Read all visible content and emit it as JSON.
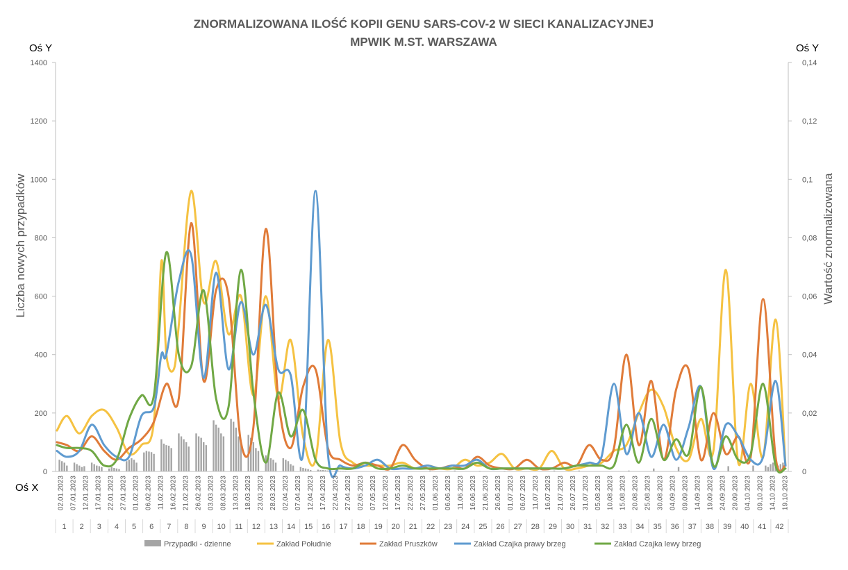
{
  "chart_data": {
    "type": "line",
    "title_line1": "ZNORMALIZOWANA ILOŚĆ KOPII GENU SARS-COV-2 W SIECI KANALIZACYJNEJ",
    "title_line2": "MPWIK M.ST. WARSZAWA",
    "os_y_left": "Oś Y",
    "os_y_right": "Oś Y",
    "os_x": "Oś X",
    "ylabel_left": "Liczba nowych przypadków",
    "ylabel_right": "Wartość znormalizowana",
    "ylim_left": [
      0,
      1400
    ],
    "ylim_right": [
      0,
      0.14
    ],
    "yticks_left": [
      "0",
      "200",
      "400",
      "600",
      "800",
      "1000",
      "1200",
      "1400"
    ],
    "yticks_right": [
      "0",
      "0,02",
      "0,04",
      "0,06",
      "0,08",
      "0,1",
      "0,12",
      "0,14"
    ],
    "grid": false,
    "legend_position": "bottom",
    "x_range": [
      0,
      293
    ],
    "date_labels": [
      "02.01.2023",
      "07.01.2023",
      "12.01.2023",
      "17.01.2023",
      "22.01.2023",
      "27.01.2023",
      "01.02.2023",
      "06.02.2023",
      "11.02.2023",
      "16.02.2023",
      "21.02.2023",
      "26.02.2023",
      "03.03.2023",
      "08.03.2023",
      "13.03.2023",
      "18.03.2023",
      "23.03.2023",
      "28.03.2023",
      "02.04.2023",
      "07.04.2023",
      "12.04.2023",
      "17.04.2023",
      "22.04.2023",
      "27.04.2023",
      "02.05.2023",
      "07.05.2023",
      "12.05.2023",
      "17.05.2023",
      "22.05.2023",
      "27.05.2023",
      "01.06.2023",
      "06.06.2023",
      "11.06.2023",
      "16.06.2023",
      "21.06.2023",
      "26.06.2023",
      "01.07.2023",
      "06.07.2023",
      "11.07.2023",
      "16.07.2023",
      "21.07.2023",
      "26.07.2023",
      "31.07.2023",
      "05.08.2023",
      "10.08.2023",
      "15.08.2023",
      "20.08.2023",
      "25.08.2023",
      "30.08.2023",
      "04.09.2023",
      "09.09.2023",
      "14.09.2023",
      "19.09.2023",
      "24.09.2023",
      "29.09.2023",
      "04.10.2023",
      "09.10.2023",
      "14.10.2023",
      "19.10.2023"
    ],
    "week_labels": [
      "1",
      "2",
      "3",
      "4",
      "5",
      "6",
      "7",
      "8",
      "9",
      "10",
      "11",
      "12",
      "13",
      "14",
      "15",
      "16",
      "17",
      "18",
      "19",
      "20",
      "21",
      "22",
      "23",
      "24",
      "25",
      "26",
      "27",
      "28",
      "29",
      "30",
      "31",
      "32",
      "33",
      "34",
      "35",
      "36",
      "37",
      "38",
      "39",
      "40",
      "41",
      "42"
    ],
    "series": [
      {
        "name": "Przypadki - dzienne",
        "type": "bar",
        "axis": "left",
        "color": "#a5a5a5",
        "x": [
          1,
          2,
          3,
          4,
          7,
          8,
          9,
          10,
          11,
          14,
          15,
          16,
          17,
          18,
          21,
          22,
          23,
          24,
          25,
          28,
          29,
          30,
          31,
          32,
          35,
          36,
          37,
          38,
          39,
          42,
          43,
          44,
          45,
          46,
          49,
          50,
          51,
          52,
          53,
          56,
          57,
          58,
          59,
          60,
          63,
          64,
          65,
          66,
          67,
          70,
          71,
          72,
          73,
          74,
          77,
          78,
          79,
          80,
          81,
          84,
          85,
          86,
          87,
          88,
          91,
          92,
          93,
          94,
          95,
          98,
          99,
          100,
          101,
          102,
          105,
          106,
          107,
          108,
          109,
          112,
          113,
          114,
          115,
          116,
          150,
          160,
          170,
          180,
          200,
          210,
          230,
          240,
          250,
          270,
          280,
          285,
          286,
          287,
          288,
          289,
          290,
          291,
          292
        ],
        "values": [
          40,
          35,
          30,
          20,
          30,
          25,
          20,
          15,
          18,
          30,
          25,
          20,
          18,
          15,
          10,
          15,
          12,
          10,
          8,
          35,
          40,
          45,
          40,
          30,
          65,
          70,
          68,
          66,
          60,
          110,
          95,
          90,
          88,
          80,
          130,
          120,
          110,
          100,
          85,
          130,
          120,
          115,
          100,
          90,
          175,
          160,
          150,
          130,
          120,
          180,
          170,
          150,
          120,
          100,
          125,
          115,
          100,
          80,
          70,
          55,
          50,
          45,
          40,
          30,
          45,
          40,
          35,
          25,
          20,
          15,
          12,
          10,
          8,
          5,
          6,
          5,
          5,
          4,
          3,
          3,
          3,
          2,
          2,
          2,
          3,
          3,
          2,
          2,
          3,
          3,
          3,
          10,
          15,
          18,
          20,
          20,
          15,
          25,
          30,
          35,
          20,
          25,
          30
        ]
      },
      {
        "name": "Zakład Południe",
        "axis": "right",
        "color": "#f5c242",
        "x": [
          0,
          4,
          9,
          14,
          19,
          24,
          29,
          34,
          39,
          42,
          44,
          47,
          49,
          54,
          59,
          64,
          69,
          74,
          79,
          84,
          89,
          94,
          99,
          104,
          109,
          114,
          119,
          124,
          129,
          134,
          139,
          144,
          149,
          154,
          159,
          164,
          169,
          174,
          179,
          184,
          189,
          194,
          199,
          204,
          209,
          214,
          219,
          224,
          229,
          234,
          239,
          244,
          249,
          254,
          259,
          264,
          269,
          274,
          279,
          284,
          289,
          293
        ],
        "values": [
          0.014,
          0.019,
          0.013,
          0.019,
          0.021,
          0.015,
          0.006,
          0.009,
          0.017,
          0.072,
          0.04,
          0.035,
          0.05,
          0.096,
          0.058,
          0.072,
          0.047,
          0.06,
          0.026,
          0.06,
          0.025,
          0.045,
          0.012,
          0.004,
          0.045,
          0.01,
          0.003,
          0.002,
          0.002,
          0.002,
          0.003,
          0.001,
          0.002,
          0.001,
          0.001,
          0.004,
          0.002,
          0.003,
          0.006,
          0.001,
          0.001,
          0.001,
          0.007,
          0.001,
          0.001,
          0.002,
          0.003,
          0.007,
          0.009,
          0.02,
          0.028,
          0.022,
          0.008,
          0.004,
          0.018,
          0.007,
          0.069,
          0.003,
          0.03,
          0.005,
          0.052,
          0.002
        ]
      },
      {
        "name": "Zakład Pruszków",
        "axis": "right",
        "color": "#e07b39",
        "x": [
          0,
          4,
          9,
          14,
          19,
          24,
          29,
          34,
          39,
          44,
          49,
          54,
          59,
          64,
          69,
          74,
          79,
          84,
          89,
          94,
          99,
          104,
          109,
          114,
          119,
          124,
          129,
          134,
          139,
          144,
          149,
          154,
          159,
          164,
          169,
          174,
          179,
          184,
          189,
          194,
          199,
          204,
          209,
          214,
          219,
          224,
          229,
          234,
          239,
          244,
          249,
          254,
          259,
          264,
          269,
          274,
          279,
          284,
          289,
          293
        ],
        "values": [
          0.01,
          0.009,
          0.007,
          0.012,
          0.007,
          0.004,
          0.008,
          0.011,
          0.017,
          0.03,
          0.025,
          0.085,
          0.031,
          0.062,
          0.06,
          0.01,
          0.015,
          0.083,
          0.025,
          0.008,
          0.029,
          0.035,
          0.008,
          0.004,
          0.002,
          0.003,
          0.002,
          0.001,
          0.009,
          0.004,
          0.001,
          0.001,
          0.002,
          0.001,
          0.005,
          0.002,
          0.001,
          0.001,
          0.004,
          0.001,
          0.001,
          0.003,
          0.002,
          0.009,
          0.004,
          0.008,
          0.04,
          0.009,
          0.031,
          0.004,
          0.028,
          0.035,
          0.004,
          0.02,
          0.006,
          0.012,
          0.005,
          0.059,
          0.005,
          0.002
        ]
      },
      {
        "name": "Zakład Czajka prawy brzeg",
        "axis": "right",
        "color": "#5f9bd0",
        "x": [
          0,
          4,
          9,
          14,
          19,
          24,
          29,
          34,
          39,
          42,
          44,
          49,
          54,
          59,
          64,
          69,
          74,
          79,
          84,
          89,
          94,
          99,
          104,
          109,
          114,
          119,
          124,
          129,
          134,
          139,
          144,
          149,
          154,
          159,
          164,
          169,
          174,
          179,
          184,
          189,
          194,
          199,
          204,
          209,
          214,
          219,
          224,
          229,
          234,
          239,
          244,
          249,
          254,
          259,
          264,
          269,
          274,
          279,
          284,
          289,
          293
        ],
        "values": [
          0.007,
          0.005,
          0.007,
          0.016,
          0.009,
          0.005,
          0.005,
          0.019,
          0.022,
          0.04,
          0.04,
          0.065,
          0.074,
          0.032,
          0.068,
          0.035,
          0.058,
          0.04,
          0.057,
          0.035,
          0.033,
          0.006,
          0.096,
          0.006,
          0.002,
          0.001,
          0.002,
          0.004,
          0.001,
          0.001,
          0.001,
          0.002,
          0.001,
          0.002,
          0.002,
          0.004,
          0.001,
          0.001,
          0.001,
          0.001,
          0.001,
          0.001,
          0.001,
          0.002,
          0.003,
          0.005,
          0.03,
          0.006,
          0.02,
          0.005,
          0.016,
          0.004,
          0.015,
          0.029,
          0.001,
          0.016,
          0.012,
          0.004,
          0.005,
          0.031,
          0.002
        ]
      },
      {
        "name": "Zakład Czajka lewy brzeg",
        "axis": "right",
        "color": "#70a845",
        "x": [
          0,
          4,
          9,
          14,
          19,
          24,
          29,
          34,
          39,
          44,
          49,
          54,
          59,
          64,
          69,
          74,
          79,
          84,
          89,
          94,
          99,
          104,
          109,
          114,
          119,
          124,
          129,
          134,
          139,
          144,
          149,
          154,
          159,
          164,
          169,
          174,
          179,
          184,
          189,
          194,
          199,
          204,
          209,
          214,
          219,
          224,
          229,
          234,
          239,
          244,
          249,
          254,
          259,
          264,
          269,
          274,
          279,
          284,
          289,
          293
        ],
        "values": [
          0.009,
          0.008,
          0.008,
          0.007,
          0.002,
          0.004,
          0.018,
          0.026,
          0.026,
          0.075,
          0.04,
          0.036,
          0.062,
          0.025,
          0.022,
          0.069,
          0.027,
          0.003,
          0.027,
          0.012,
          0.021,
          0.004,
          0.001,
          0.001,
          0.001,
          0.003,
          0.001,
          0.001,
          0.002,
          0.001,
          0.001,
          0.001,
          0.001,
          0.001,
          0.003,
          0.001,
          0.001,
          0.001,
          0.001,
          0.001,
          0.001,
          0.001,
          0.002,
          0.002,
          0.002,
          0.002,
          0.016,
          0.003,
          0.018,
          0.004,
          0.011,
          0.006,
          0.029,
          0.002,
          0.012,
          0.004,
          0.006,
          0.03,
          0.002,
          0.001
        ]
      }
    ]
  }
}
